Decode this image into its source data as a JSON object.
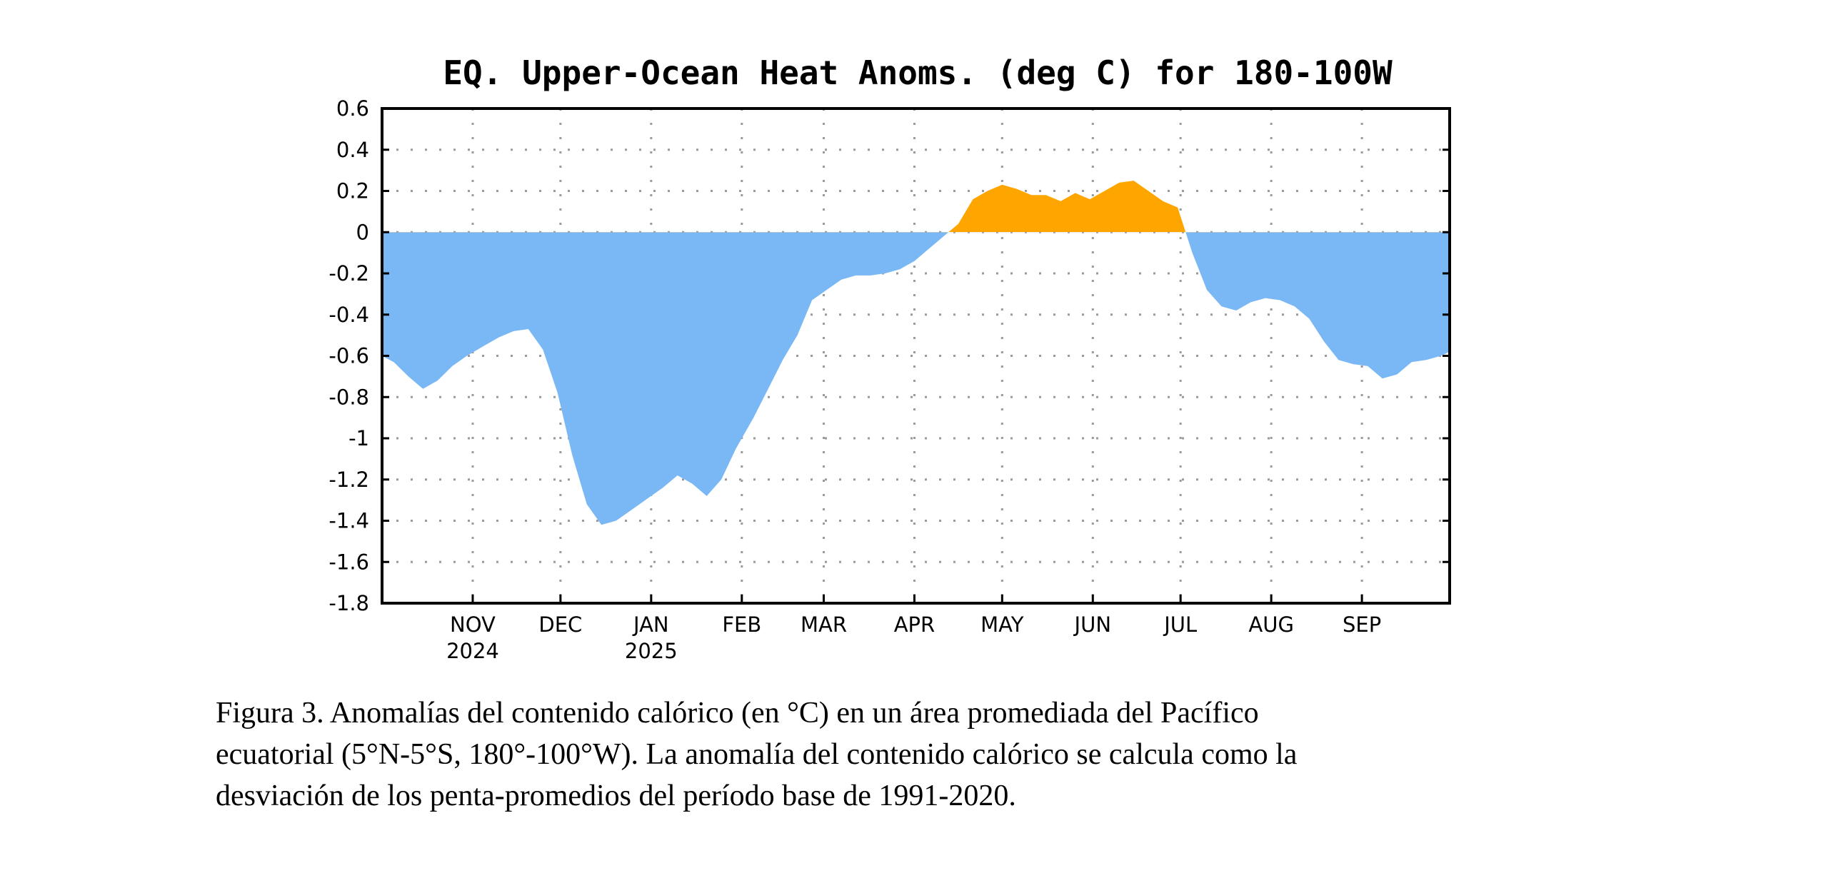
{
  "chart_data": {
    "type": "area",
    "title": "EQ. Upper-Ocean Heat Anoms. (deg C) for 180-100W",
    "ylabel": "",
    "xlabel": "",
    "ylim": [
      -1.8,
      0.6
    ],
    "yticks": [
      0.6,
      0.4,
      0.2,
      0,
      -0.2,
      -0.4,
      -0.6,
      -0.8,
      -1,
      -1.2,
      -1.4,
      -1.6,
      -1.8
    ],
    "ytick_labels": [
      "0.6",
      "0.4",
      "0.2",
      "0",
      "-0.2",
      "-0.4",
      "-0.6",
      "-0.8",
      "-1",
      "-1.2",
      "-1.4",
      "-1.6",
      "-1.8"
    ],
    "xlim": [
      "2024-10-01",
      "2025-10-01"
    ],
    "month_ticks": [
      {
        "date": "2024-11-01",
        "label": "NOV",
        "year": "2024"
      },
      {
        "date": "2024-12-01",
        "label": "DEC",
        "year": ""
      },
      {
        "date": "2025-01-01",
        "label": "JAN",
        "year": "2025"
      },
      {
        "date": "2025-02-01",
        "label": "FEB",
        "year": ""
      },
      {
        "date": "2025-03-01",
        "label": "MAR",
        "year": ""
      },
      {
        "date": "2025-04-01",
        "label": "APR",
        "year": ""
      },
      {
        "date": "2025-05-01",
        "label": "MAY",
        "year": ""
      },
      {
        "date": "2025-06-01",
        "label": "JUN",
        "year": ""
      },
      {
        "date": "2025-07-01",
        "label": "JUL",
        "year": ""
      },
      {
        "date": "2025-08-01",
        "label": "AUG",
        "year": ""
      },
      {
        "date": "2025-09-01",
        "label": "SEP",
        "year": ""
      }
    ],
    "grid": true,
    "positive_color": "#ffa500",
    "negative_color": "#7ab8f5",
    "x": [
      "2024-10-01",
      "2024-10-05",
      "2024-10-10",
      "2024-10-15",
      "2024-10-20",
      "2024-10-25",
      "2024-10-30",
      "2024-11-05",
      "2024-11-10",
      "2024-11-15",
      "2024-11-20",
      "2024-11-25",
      "2024-11-30",
      "2024-12-05",
      "2024-12-10",
      "2024-12-15",
      "2024-12-20",
      "2024-12-25",
      "2024-12-30",
      "2025-01-05",
      "2025-01-10",
      "2025-01-15",
      "2025-01-20",
      "2025-01-25",
      "2025-01-30",
      "2025-02-05",
      "2025-02-10",
      "2025-02-15",
      "2025-02-20",
      "2025-02-25",
      "2025-03-02",
      "2025-03-07",
      "2025-03-12",
      "2025-03-17",
      "2025-03-22",
      "2025-03-27",
      "2025-04-01",
      "2025-04-06",
      "2025-04-11",
      "2025-04-16",
      "2025-04-21",
      "2025-04-26",
      "2025-05-01",
      "2025-05-06",
      "2025-05-11",
      "2025-05-16",
      "2025-05-21",
      "2025-05-26",
      "2025-05-31",
      "2025-06-05",
      "2025-06-10",
      "2025-06-15",
      "2025-06-20",
      "2025-06-25",
      "2025-06-30",
      "2025-07-05",
      "2025-07-10",
      "2025-07-15",
      "2025-07-20",
      "2025-07-25",
      "2025-07-30",
      "2025-08-04",
      "2025-08-09",
      "2025-08-14",
      "2025-08-19",
      "2025-08-24",
      "2025-08-29",
      "2025-09-03",
      "2025-09-08",
      "2025-09-13",
      "2025-09-18",
      "2025-09-23",
      "2025-09-28",
      "2025-10-01"
    ],
    "values": [
      -0.6,
      -0.63,
      -0.7,
      -0.76,
      -0.72,
      -0.65,
      -0.6,
      -0.55,
      -0.51,
      -0.48,
      -0.47,
      -0.57,
      -0.78,
      -1.08,
      -1.32,
      -1.42,
      -1.4,
      -1.35,
      -1.3,
      -1.24,
      -1.18,
      -1.22,
      -1.28,
      -1.2,
      -1.05,
      -0.9,
      -0.76,
      -0.62,
      -0.5,
      -0.33,
      -0.28,
      -0.23,
      -0.21,
      -0.21,
      -0.2,
      -0.18,
      -0.14,
      -0.08,
      -0.02,
      0.04,
      0.16,
      0.2,
      0.23,
      0.21,
      0.18,
      0.18,
      0.15,
      0.19,
      0.16,
      0.2,
      0.24,
      0.25,
      0.2,
      0.15,
      0.12,
      -0.1,
      -0.28,
      -0.36,
      -0.38,
      -0.34,
      -0.32,
      -0.33,
      -0.36,
      -0.42,
      -0.53,
      -0.62,
      -0.64,
      -0.65,
      -0.71,
      -0.69,
      -0.63,
      -0.62,
      -0.6,
      -0.58
    ]
  },
  "caption": {
    "line1": "Figura 3. Anomalías del contenido calórico (en °C) en un área promediada del Pacífico",
    "line2": "ecuatorial (5°N-5°S, 180°-100°W). La anomalía del contenido calórico se calcula como la",
    "line3": "desviación de los penta-promedios del período base de 1991-2020."
  }
}
